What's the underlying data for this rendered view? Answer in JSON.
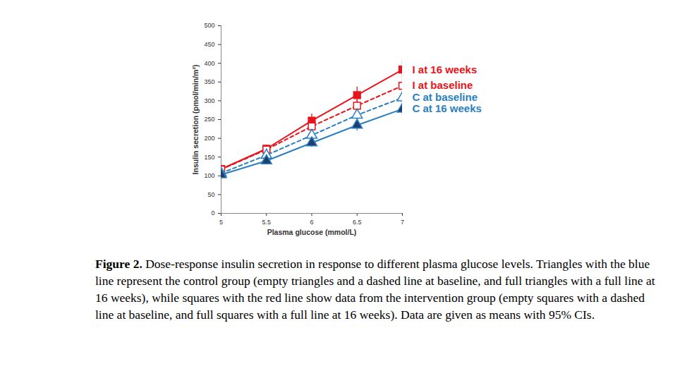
{
  "chart_data": {
    "type": "line",
    "x_label": "Plasma glucose (mmol/L)",
    "y_label": "Insulin secretion (pmol/min/m²)",
    "x": [
      5,
      5.5,
      6,
      6.5,
      7
    ],
    "xlim": [
      5,
      7
    ],
    "xticks": [
      5,
      5.5,
      6,
      6.5,
      7
    ],
    "ylim": [
      0,
      500
    ],
    "yticks": [
      0,
      50,
      100,
      150,
      200,
      250,
      300,
      350,
      400,
      450,
      500
    ],
    "grid": false,
    "series": [
      {
        "name": "I at 16 weeks",
        "color": "#e8141c",
        "marker": "square",
        "line_style": "solid",
        "values": [
          118,
          172,
          247,
          315,
          383
        ],
        "errors": [
          8,
          10,
          18,
          22,
          25
        ]
      },
      {
        "name": "I at baseline",
        "color": "#e8141c",
        "marker": "square_open",
        "line_style": "dashed",
        "values": [
          117,
          170,
          232,
          287,
          340
        ],
        "errors": [
          6,
          8,
          12,
          15,
          18
        ]
      },
      {
        "name": "C at baseline",
        "color": "#2a7fc1",
        "marker": "triangle_open",
        "line_style": "dashed",
        "values": [
          107,
          155,
          208,
          262,
          308
        ],
        "errors": [
          6,
          8,
          10,
          12,
          14
        ]
      },
      {
        "name": "C at 16 weeks",
        "color": "#2a7fc1",
        "marker": "triangle",
        "line_style": "solid",
        "values": [
          103,
          140,
          188,
          235,
          278
        ],
        "errors": [
          6,
          8,
          12,
          15,
          18
        ]
      }
    ],
    "caption_label": "Figure 2.",
    "caption": "Dose-response insulin secretion in response to different plasma glucose levels. Triangles with the blue line represent the control group (empty triangles and a dashed line at baseline, and full triangles with a full line at 16 weeks), while squares with the red line show data from the intervention group (empty squares with a dashed line at baseline, and full squares with a full line at 16 weeks). Data are given as means with 95% CIs."
  }
}
